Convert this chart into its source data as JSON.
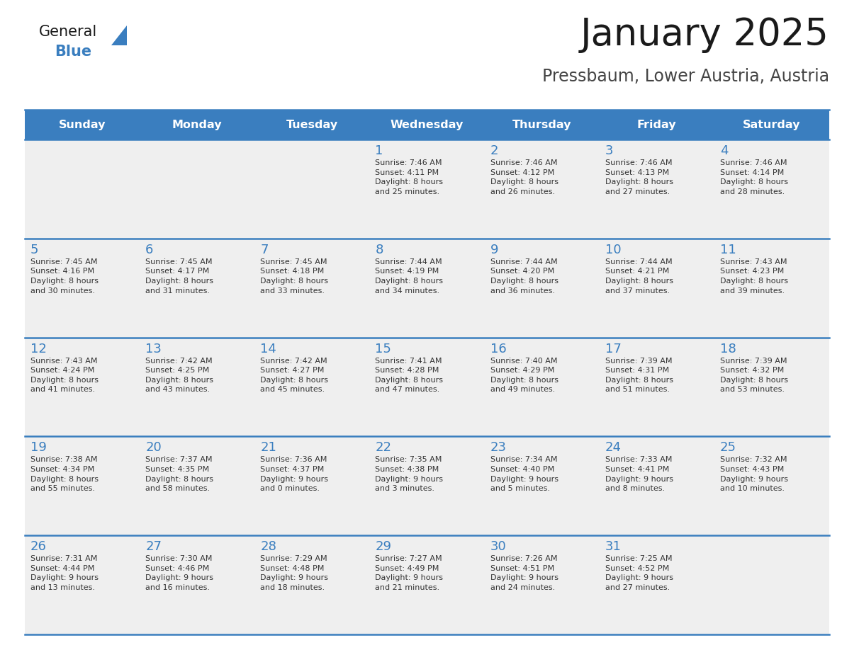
{
  "title": "January 2025",
  "subtitle": "Pressbaum, Lower Austria, Austria",
  "days_of_week": [
    "Sunday",
    "Monday",
    "Tuesday",
    "Wednesday",
    "Thursday",
    "Friday",
    "Saturday"
  ],
  "header_bg": "#3a7ebf",
  "header_text": "#ffffff",
  "day_num_color": "#3a7ebf",
  "cell_bg": "#efefef",
  "cell_empty_bg": "#ffffff",
  "line_color": "#3a7ebf",
  "text_color": "#333333",
  "title_color": "#1a1a1a",
  "subtitle_color": "#444444",
  "calendar": [
    [
      {
        "day": "",
        "info": ""
      },
      {
        "day": "",
        "info": ""
      },
      {
        "day": "",
        "info": ""
      },
      {
        "day": "1",
        "info": "Sunrise: 7:46 AM\nSunset: 4:11 PM\nDaylight: 8 hours\nand 25 minutes."
      },
      {
        "day": "2",
        "info": "Sunrise: 7:46 AM\nSunset: 4:12 PM\nDaylight: 8 hours\nand 26 minutes."
      },
      {
        "day": "3",
        "info": "Sunrise: 7:46 AM\nSunset: 4:13 PM\nDaylight: 8 hours\nand 27 minutes."
      },
      {
        "day": "4",
        "info": "Sunrise: 7:46 AM\nSunset: 4:14 PM\nDaylight: 8 hours\nand 28 minutes."
      }
    ],
    [
      {
        "day": "5",
        "info": "Sunrise: 7:45 AM\nSunset: 4:16 PM\nDaylight: 8 hours\nand 30 minutes."
      },
      {
        "day": "6",
        "info": "Sunrise: 7:45 AM\nSunset: 4:17 PM\nDaylight: 8 hours\nand 31 minutes."
      },
      {
        "day": "7",
        "info": "Sunrise: 7:45 AM\nSunset: 4:18 PM\nDaylight: 8 hours\nand 33 minutes."
      },
      {
        "day": "8",
        "info": "Sunrise: 7:44 AM\nSunset: 4:19 PM\nDaylight: 8 hours\nand 34 minutes."
      },
      {
        "day": "9",
        "info": "Sunrise: 7:44 AM\nSunset: 4:20 PM\nDaylight: 8 hours\nand 36 minutes."
      },
      {
        "day": "10",
        "info": "Sunrise: 7:44 AM\nSunset: 4:21 PM\nDaylight: 8 hours\nand 37 minutes."
      },
      {
        "day": "11",
        "info": "Sunrise: 7:43 AM\nSunset: 4:23 PM\nDaylight: 8 hours\nand 39 minutes."
      }
    ],
    [
      {
        "day": "12",
        "info": "Sunrise: 7:43 AM\nSunset: 4:24 PM\nDaylight: 8 hours\nand 41 minutes."
      },
      {
        "day": "13",
        "info": "Sunrise: 7:42 AM\nSunset: 4:25 PM\nDaylight: 8 hours\nand 43 minutes."
      },
      {
        "day": "14",
        "info": "Sunrise: 7:42 AM\nSunset: 4:27 PM\nDaylight: 8 hours\nand 45 minutes."
      },
      {
        "day": "15",
        "info": "Sunrise: 7:41 AM\nSunset: 4:28 PM\nDaylight: 8 hours\nand 47 minutes."
      },
      {
        "day": "16",
        "info": "Sunrise: 7:40 AM\nSunset: 4:29 PM\nDaylight: 8 hours\nand 49 minutes."
      },
      {
        "day": "17",
        "info": "Sunrise: 7:39 AM\nSunset: 4:31 PM\nDaylight: 8 hours\nand 51 minutes."
      },
      {
        "day": "18",
        "info": "Sunrise: 7:39 AM\nSunset: 4:32 PM\nDaylight: 8 hours\nand 53 minutes."
      }
    ],
    [
      {
        "day": "19",
        "info": "Sunrise: 7:38 AM\nSunset: 4:34 PM\nDaylight: 8 hours\nand 55 minutes."
      },
      {
        "day": "20",
        "info": "Sunrise: 7:37 AM\nSunset: 4:35 PM\nDaylight: 8 hours\nand 58 minutes."
      },
      {
        "day": "21",
        "info": "Sunrise: 7:36 AM\nSunset: 4:37 PM\nDaylight: 9 hours\nand 0 minutes."
      },
      {
        "day": "22",
        "info": "Sunrise: 7:35 AM\nSunset: 4:38 PM\nDaylight: 9 hours\nand 3 minutes."
      },
      {
        "day": "23",
        "info": "Sunrise: 7:34 AM\nSunset: 4:40 PM\nDaylight: 9 hours\nand 5 minutes."
      },
      {
        "day": "24",
        "info": "Sunrise: 7:33 AM\nSunset: 4:41 PM\nDaylight: 9 hours\nand 8 minutes."
      },
      {
        "day": "25",
        "info": "Sunrise: 7:32 AM\nSunset: 4:43 PM\nDaylight: 9 hours\nand 10 minutes."
      }
    ],
    [
      {
        "day": "26",
        "info": "Sunrise: 7:31 AM\nSunset: 4:44 PM\nDaylight: 9 hours\nand 13 minutes."
      },
      {
        "day": "27",
        "info": "Sunrise: 7:30 AM\nSunset: 4:46 PM\nDaylight: 9 hours\nand 16 minutes."
      },
      {
        "day": "28",
        "info": "Sunrise: 7:29 AM\nSunset: 4:48 PM\nDaylight: 9 hours\nand 18 minutes."
      },
      {
        "day": "29",
        "info": "Sunrise: 7:27 AM\nSunset: 4:49 PM\nDaylight: 9 hours\nand 21 minutes."
      },
      {
        "day": "30",
        "info": "Sunrise: 7:26 AM\nSunset: 4:51 PM\nDaylight: 9 hours\nand 24 minutes."
      },
      {
        "day": "31",
        "info": "Sunrise: 7:25 AM\nSunset: 4:52 PM\nDaylight: 9 hours\nand 27 minutes."
      },
      {
        "day": "",
        "info": ""
      }
    ]
  ],
  "logo_general_color": "#1a1a1a",
  "logo_blue_color": "#3a7ebf",
  "figwidth": 11.88,
  "figheight": 9.18,
  "dpi": 100
}
